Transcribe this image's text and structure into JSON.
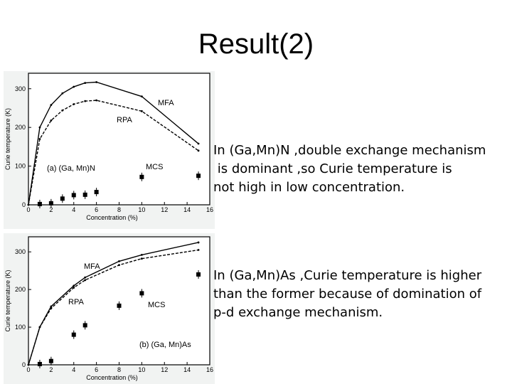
{
  "slide": {
    "title": "Result(2)",
    "paragraph_1": "In (Ga,Mn)N ,double exchange mechanism\n is dominant ,so Curie temperature is\nnot high in low concentration.",
    "paragraph_2": "In (Ga,Mn)As ,Curie temperature is higher\nthan the former because of domination of\np-d exchange mechanism."
  },
  "chart_data": [
    {
      "type": "line",
      "panel_label": "(a) (Ga, Mn)N",
      "xlabel": "Concentration (%)",
      "ylabel": "Curie temperature (K)",
      "xlim": [
        0,
        16
      ],
      "ylim": [
        0,
        340
      ],
      "xticks": [
        0,
        2,
        4,
        6,
        8,
        10,
        12,
        14,
        16
      ],
      "yticks": [
        0,
        100,
        200,
        300
      ],
      "series": [
        {
          "name": "MFA",
          "style": "solid",
          "x": [
            0,
            1,
            2,
            3,
            4,
            5,
            6,
            10,
            15
          ],
          "y": [
            0,
            200,
            258,
            288,
            305,
            315,
            317,
            280,
            158
          ]
        },
        {
          "name": "RPA",
          "style": "dashed",
          "x": [
            0,
            1,
            2,
            3,
            4,
            5,
            6,
            10,
            15
          ],
          "y": [
            0,
            170,
            218,
            244,
            260,
            268,
            270,
            242,
            140
          ]
        },
        {
          "name": "MCS",
          "style": "markers",
          "x": [
            1,
            2,
            3,
            4,
            5,
            6,
            10,
            15
          ],
          "y": [
            2,
            4,
            16,
            25,
            26,
            33,
            72,
            75
          ]
        }
      ],
      "annotations": [
        "MFA",
        "RPA",
        "MCS"
      ]
    },
    {
      "type": "line",
      "panel_label": "(b) (Ga, Mn)As",
      "xlabel": "Concentration (%)",
      "ylabel": "Curie temperature (K)",
      "xlim": [
        0,
        16
      ],
      "ylim": [
        0,
        340
      ],
      "xticks": [
        0,
        2,
        4,
        6,
        8,
        10,
        12,
        14,
        16
      ],
      "yticks": [
        0,
        100,
        200,
        300
      ],
      "series": [
        {
          "name": "MFA",
          "style": "solid",
          "x": [
            0,
            1,
            2,
            4,
            5,
            8,
            10,
            15
          ],
          "y": [
            0,
            100,
            155,
            210,
            232,
            275,
            292,
            325
          ]
        },
        {
          "name": "RPA",
          "style": "dashed",
          "x": [
            0,
            1,
            2,
            4,
            5,
            8,
            10,
            15
          ],
          "y": [
            0,
            100,
            150,
            205,
            225,
            265,
            282,
            305
          ]
        },
        {
          "name": "MCS",
          "style": "markers",
          "x": [
            1,
            2,
            4,
            5,
            8,
            10,
            15
          ],
          "y": [
            2,
            10,
            80,
            105,
            157,
            190,
            240
          ]
        }
      ],
      "annotations": [
        "MFA",
        "RPA",
        "MCS"
      ]
    }
  ]
}
